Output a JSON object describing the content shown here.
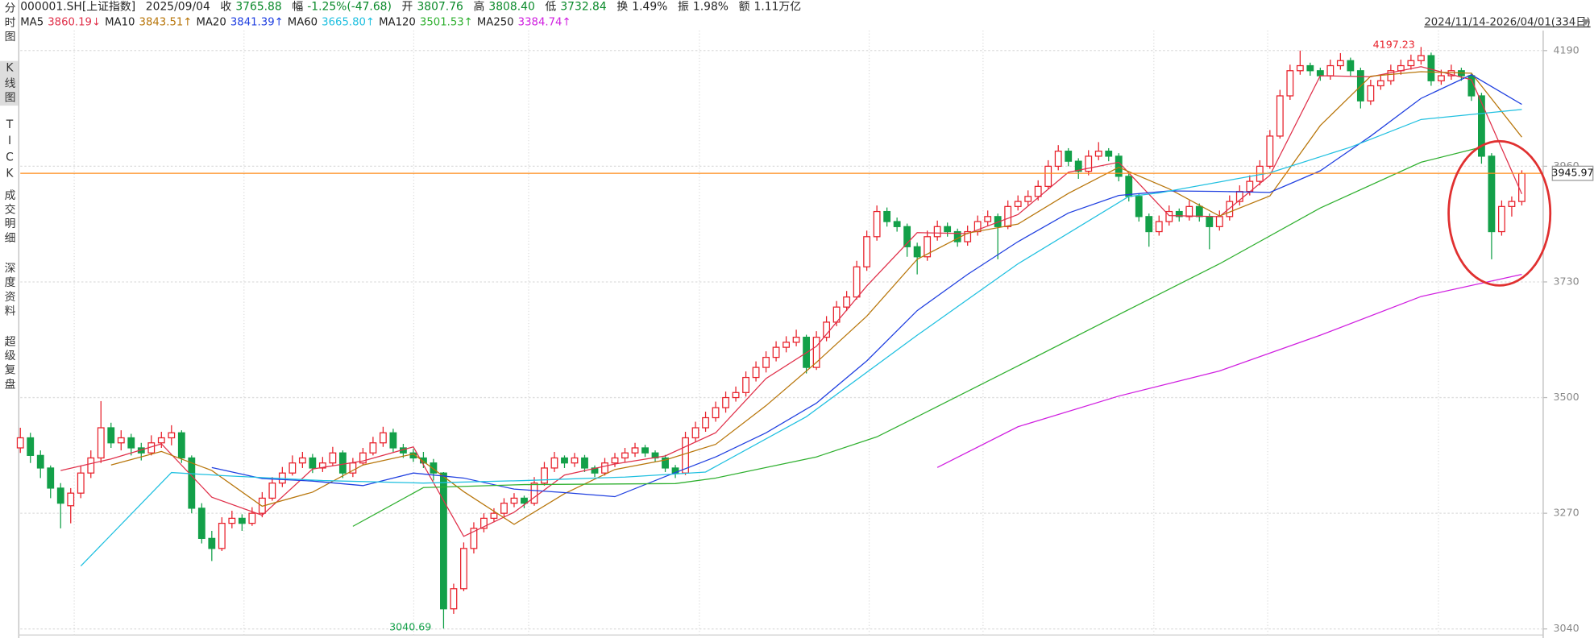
{
  "sidebar": [
    "分时图",
    "K线图",
    "TICK",
    "成交明细",
    "深度资料",
    "超级复盘"
  ],
  "header": {
    "code": "000001.SH[上证指数]",
    "date": "2025/09/04",
    "range": "2024/11/14-2026/04/01(334日)",
    "fields": [
      {
        "label": "收",
        "value": "3765.88",
        "color": "#0a8a2a"
      },
      {
        "label": "幅",
        "value": "-1.25%(-47.68)",
        "color": "#0a8a2a"
      },
      {
        "label": "开",
        "value": "3807.76",
        "color": "#0a8a2a"
      },
      {
        "label": "高",
        "value": "3808.40",
        "color": "#0a8a2a"
      },
      {
        "label": "低",
        "value": "3732.84",
        "color": "#0a8a2a"
      },
      {
        "label": "换",
        "value": "1.49%",
        "color": "#222222"
      },
      {
        "label": "振",
        "value": "1.98%",
        "color": "#222222"
      },
      {
        "label": "额",
        "value": "1.11万亿",
        "color": "#222222"
      }
    ]
  },
  "chart_data": {
    "type": "candlestick",
    "ylim": [
      3028,
      4230
    ],
    "yticks": [
      3040,
      3270,
      3500,
      3730,
      3960,
      4190
    ],
    "grid": true,
    "up_color": "#e8202a",
    "down_color": "#13a049",
    "last_price": 3945.97,
    "last_price_color": "#ff8c1a",
    "legend_values": [
      "3860.19↓",
      "3843.51↑",
      "3841.39↑",
      "3665.80↑",
      "3501.53↑",
      "3384.74↑"
    ],
    "candles": [
      [
        3400,
        3440,
        3390,
        3420
      ],
      [
        3420,
        3430,
        3370,
        3385
      ],
      [
        3385,
        3395,
        3340,
        3360
      ],
      [
        3360,
        3365,
        3300,
        3320
      ],
      [
        3320,
        3330,
        3240,
        3290
      ],
      [
        3285,
        3320,
        3250,
        3310
      ],
      [
        3310,
        3365,
        3300,
        3350
      ],
      [
        3350,
        3395,
        3340,
        3380
      ],
      [
        3380,
        3493,
        3370,
        3440
      ],
      [
        3440,
        3450,
        3400,
        3410
      ],
      [
        3410,
        3435,
        3395,
        3420
      ],
      [
        3420,
        3428,
        3385,
        3400
      ],
      [
        3400,
        3410,
        3375,
        3390
      ],
      [
        3390,
        3425,
        3385,
        3410
      ],
      [
        3410,
        3432,
        3400,
        3420
      ],
      [
        3420,
        3445,
        3405,
        3430
      ],
      [
        3430,
        3435,
        3370,
        3380
      ],
      [
        3380,
        3385,
        3270,
        3280
      ],
      [
        3280,
        3290,
        3210,
        3220
      ],
      [
        3220,
        3235,
        3175,
        3200
      ],
      [
        3200,
        3262,
        3195,
        3250
      ],
      [
        3250,
        3275,
        3240,
        3260
      ],
      [
        3260,
        3268,
        3235,
        3250
      ],
      [
        3250,
        3282,
        3245,
        3270
      ],
      [
        3270,
        3312,
        3262,
        3300
      ],
      [
        3300,
        3342,
        3295,
        3330
      ],
      [
        3330,
        3362,
        3322,
        3350
      ],
      [
        3350,
        3385,
        3345,
        3370
      ],
      [
        3370,
        3392,
        3360,
        3380
      ],
      [
        3380,
        3388,
        3350,
        3360
      ],
      [
        3360,
        3382,
        3352,
        3370
      ],
      [
        3370,
        3402,
        3365,
        3390
      ],
      [
        3390,
        3395,
        3340,
        3350
      ],
      [
        3350,
        3380,
        3342,
        3370
      ],
      [
        3370,
        3400,
        3365,
        3390
      ],
      [
        3390,
        3422,
        3385,
        3410
      ],
      [
        3410,
        3442,
        3402,
        3430
      ],
      [
        3430,
        3438,
        3392,
        3400
      ],
      [
        3400,
        3408,
        3380,
        3390
      ],
      [
        3390,
        3398,
        3372,
        3380
      ],
      [
        3380,
        3392,
        3360,
        3370
      ],
      [
        3370,
        3378,
        3335,
        3350
      ],
      [
        3350,
        3352,
        3040.69,
        3080
      ],
      [
        3080,
        3130,
        3070,
        3120
      ],
      [
        3120,
        3212,
        3115,
        3200
      ],
      [
        3200,
        3252,
        3190,
        3240
      ],
      [
        3240,
        3270,
        3232,
        3260
      ],
      [
        3260,
        3280,
        3252,
        3270
      ],
      [
        3270,
        3300,
        3262,
        3290
      ],
      [
        3290,
        3310,
        3282,
        3300
      ],
      [
        3300,
        3305,
        3280,
        3290
      ],
      [
        3290,
        3342,
        3285,
        3330
      ],
      [
        3330,
        3372,
        3325,
        3360
      ],
      [
        3360,
        3392,
        3352,
        3380
      ],
      [
        3380,
        3385,
        3360,
        3370
      ],
      [
        3370,
        3390,
        3362,
        3380
      ],
      [
        3380,
        3386,
        3352,
        3360
      ],
      [
        3360,
        3365,
        3342,
        3350
      ],
      [
        3350,
        3380,
        3345,
        3370
      ],
      [
        3370,
        3390,
        3362,
        3380
      ],
      [
        3380,
        3400,
        3372,
        3390
      ],
      [
        3390,
        3410,
        3382,
        3400
      ],
      [
        3400,
        3406,
        3382,
        3390
      ],
      [
        3390,
        3395,
        3372,
        3380
      ],
      [
        3380,
        3386,
        3352,
        3360
      ],
      [
        3360,
        3366,
        3340,
        3350
      ],
      [
        3350,
        3432,
        3346,
        3420
      ],
      [
        3420,
        3452,
        3412,
        3440
      ],
      [
        3440,
        3472,
        3432,
        3460
      ],
      [
        3460,
        3492,
        3452,
        3480
      ],
      [
        3480,
        3512,
        3470,
        3500
      ],
      [
        3500,
        3522,
        3492,
        3510
      ],
      [
        3510,
        3552,
        3502,
        3540
      ],
      [
        3540,
        3572,
        3532,
        3560
      ],
      [
        3560,
        3592,
        3550,
        3580
      ],
      [
        3580,
        3612,
        3572,
        3600
      ],
      [
        3600,
        3622,
        3590,
        3610
      ],
      [
        3610,
        3635,
        3602,
        3620
      ],
      [
        3620,
        3625,
        3548,
        3560
      ],
      [
        3560,
        3632,
        3555,
        3620
      ],
      [
        3620,
        3662,
        3612,
        3650
      ],
      [
        3650,
        3692,
        3642,
        3680
      ],
      [
        3680,
        3712,
        3672,
        3700
      ],
      [
        3700,
        3772,
        3695,
        3760
      ],
      [
        3760,
        3832,
        3752,
        3820
      ],
      [
        3820,
        3882,
        3812,
        3870
      ],
      [
        3870,
        3878,
        3840,
        3850
      ],
      [
        3850,
        3858,
        3830,
        3840
      ],
      [
        3840,
        3846,
        3780,
        3800
      ],
      [
        3800,
        3808,
        3745,
        3780
      ],
      [
        3780,
        3832,
        3772,
        3820
      ],
      [
        3820,
        3852,
        3812,
        3840
      ],
      [
        3840,
        3848,
        3820,
        3830
      ],
      [
        3830,
        3836,
        3800,
        3810
      ],
      [
        3810,
        3842,
        3802,
        3830
      ],
      [
        3830,
        3862,
        3822,
        3850
      ],
      [
        3850,
        3872,
        3842,
        3860
      ],
      [
        3860,
        3866,
        3775,
        3840
      ],
      [
        3840,
        3892,
        3835,
        3880
      ],
      [
        3880,
        3902,
        3872,
        3890
      ],
      [
        3890,
        3912,
        3882,
        3900
      ],
      [
        3900,
        3932,
        3892,
        3920
      ],
      [
        3920,
        3972,
        3915,
        3960
      ],
      [
        3960,
        4002,
        3952,
        3990
      ],
      [
        3990,
        3996,
        3960,
        3970
      ],
      [
        3970,
        3976,
        3935,
        3950
      ],
      [
        3950,
        3992,
        3942,
        3980
      ],
      [
        3980,
        4008,
        3972,
        3990
      ],
      [
        3990,
        3996,
        3970,
        3980
      ],
      [
        3980,
        3986,
        3930,
        3940
      ],
      [
        3940,
        3946,
        3890,
        3900
      ],
      [
        3900,
        3906,
        3850,
        3860
      ],
      [
        3860,
        3866,
        3800,
        3830
      ],
      [
        3830,
        3862,
        3822,
        3850
      ],
      [
        3850,
        3882,
        3842,
        3870
      ],
      [
        3870,
        3876,
        3850,
        3860
      ],
      [
        3860,
        3892,
        3852,
        3880
      ],
      [
        3880,
        3886,
        3850,
        3860
      ],
      [
        3860,
        3866,
        3795,
        3840
      ],
      [
        3840,
        3872,
        3832,
        3860
      ],
      [
        3860,
        3902,
        3852,
        3890
      ],
      [
        3890,
        3922,
        3882,
        3910
      ],
      [
        3910,
        3942,
        3902,
        3930
      ],
      [
        3930,
        3972,
        3922,
        3960
      ],
      [
        3960,
        4032,
        3955,
        4020
      ],
      [
        4020,
        4112,
        4015,
        4100
      ],
      [
        4100,
        4162,
        4092,
        4150
      ],
      [
        4150,
        4190,
        4142,
        4160
      ],
      [
        4160,
        4166,
        4140,
        4150
      ],
      [
        4150,
        4156,
        4130,
        4140
      ],
      [
        4140,
        4172,
        4132,
        4160
      ],
      [
        4160,
        4185,
        4152,
        4170
      ],
      [
        4170,
        4176,
        4140,
        4150
      ],
      [
        4150,
        4156,
        4075,
        4090
      ],
      [
        4090,
        4132,
        4082,
        4120
      ],
      [
        4120,
        4142,
        4112,
        4130
      ],
      [
        4130,
        4162,
        4122,
        4150
      ],
      [
        4150,
        4172,
        4142,
        4160
      ],
      [
        4160,
        4182,
        4152,
        4170
      ],
      [
        4170,
        4197.23,
        4162,
        4180
      ],
      [
        4180,
        4186,
        4120,
        4130
      ],
      [
        4130,
        4152,
        4122,
        4140
      ],
      [
        4140,
        4162,
        4132,
        4150
      ],
      [
        4150,
        4156,
        4130,
        4140
      ],
      [
        4140,
        4146,
        4090,
        4100
      ],
      [
        4100,
        4106,
        3965,
        3980
      ],
      [
        3980,
        3986,
        3775,
        3830
      ],
      [
        3830,
        3892,
        3822,
        3880
      ],
      [
        3880,
        3900,
        3860,
        3890
      ],
      [
        3890,
        3952,
        3882,
        3945.97
      ]
    ],
    "series": [
      {
        "name": "MA5",
        "color": "#e0304a",
        "x": [
          4,
          9,
          14,
          19,
          24,
          29,
          34,
          39,
          44,
          49,
          54,
          59,
          64,
          69,
          74,
          79,
          84,
          89,
          94,
          99,
          104,
          109,
          114,
          119,
          124,
          129,
          134,
          139,
          144,
          149
        ],
        "values": [
          3355,
          3378,
          3408,
          3302,
          3266,
          3358,
          3374,
          3402,
          3224,
          3272,
          3346,
          3368,
          3384,
          3430,
          3538,
          3602,
          3722,
          3828,
          3826,
          3864,
          3948,
          3968,
          3862,
          3860,
          3942,
          4140,
          4138,
          4158,
          4132,
          3905
        ]
      },
      {
        "name": "MA10",
        "color": "#b8760b",
        "x": [
          9,
          14,
          19,
          24,
          29,
          34,
          39,
          44,
          49,
          54,
          59,
          64,
          69,
          74,
          79,
          84,
          89,
          94,
          99,
          104,
          109,
          114,
          119,
          124,
          129,
          134,
          139,
          144,
          149
        ],
        "values": [
          3366,
          3393,
          3355,
          3284,
          3312,
          3366,
          3388,
          3313,
          3248,
          3309,
          3357,
          3376,
          3407,
          3484,
          3570,
          3662,
          3775,
          3827,
          3845,
          3906,
          3958,
          3915,
          3861,
          3901,
          4041,
          4139,
          4148,
          4145,
          4018
        ]
      },
      {
        "name": "MA20",
        "color": "#2040e0",
        "x": [
          19,
          24,
          29,
          34,
          39,
          44,
          49,
          54,
          59,
          64,
          69,
          74,
          79,
          84,
          89,
          94,
          99,
          104,
          109,
          114,
          119,
          124,
          129,
          134,
          139,
          144,
          149
        ],
        "values": [
          3361,
          3339,
          3334,
          3325,
          3350,
          3340,
          3318,
          3311,
          3303,
          3343,
          3382,
          3430,
          3489,
          3573,
          3673,
          3745,
          3810,
          3867,
          3902,
          3911,
          3910,
          3908,
          3951,
          4020,
          4095,
          4142,
          4083
        ]
      },
      {
        "name": "MA60",
        "color": "#20c0e0",
        "x": [
          6,
          15,
          20,
          30,
          40,
          50,
          60,
          68,
          78,
          89,
          99,
          110,
          113,
          124,
          132,
          139,
          149
        ],
        "values": [
          3165,
          3351,
          3345,
          3335,
          3330,
          3335,
          3342,
          3352,
          3462,
          3624,
          3766,
          3900,
          3907,
          3947,
          3998,
          4053,
          4073
        ]
      },
      {
        "name": "MA120",
        "color": "#30b030",
        "x": [
          33,
          40,
          50,
          65,
          69,
          79,
          85,
          89,
          99,
          109,
          119,
          129,
          139,
          145
        ],
        "values": [
          3244,
          3321,
          3327,
          3329,
          3340,
          3382,
          3422,
          3462,
          3563,
          3665,
          3766,
          3877,
          3968,
          3998
        ]
      },
      {
        "name": "MA250",
        "color": "#d020e0",
        "x": [
          91,
          99,
          109,
          119,
          129,
          139,
          149
        ],
        "values": [
          3361,
          3442,
          3503,
          3553,
          3624,
          3701,
          3745
        ]
      }
    ]
  }
}
